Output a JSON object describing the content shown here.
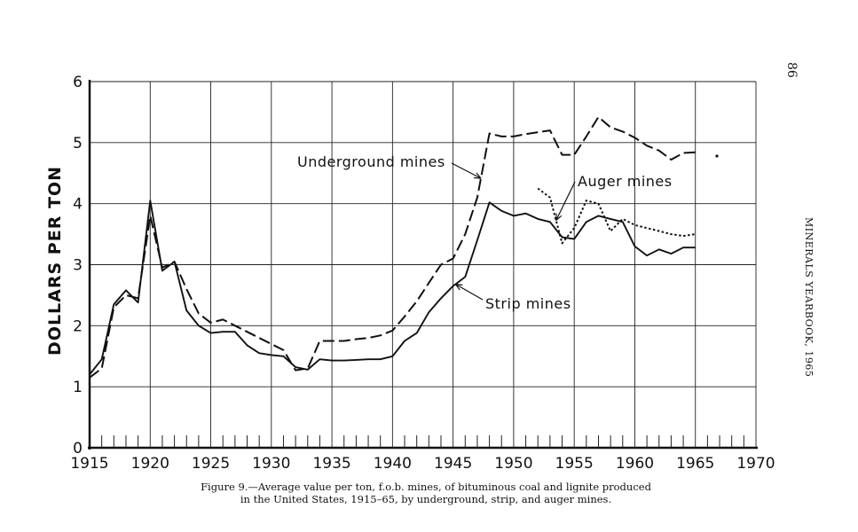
{
  "page": {
    "page_number": "86",
    "running_head": "MINERALS YEARBOOK, 1965",
    "caption_line1": "Figure 9.—Average value per ton, f.o.b. mines, of bituminous coal and lignite produced",
    "caption_line2": "in the United States, 1915–65, by underground, strip, and auger mines."
  },
  "chart_data": {
    "type": "line",
    "title": "",
    "xlabel": "",
    "ylabel": "DOLLARS PER TON",
    "xlim": [
      1915,
      1970
    ],
    "ylim": [
      0,
      6
    ],
    "grid": true,
    "legend": "none (series labeled directly on chart)",
    "x_ticks": [
      1915,
      1920,
      1925,
      1930,
      1935,
      1940,
      1945,
      1950,
      1955,
      1960,
      1965,
      1970
    ],
    "x_tick_labels": [
      "1915",
      "1920",
      "1925",
      "1930",
      "1935",
      "1940",
      "1945",
      "1950",
      "1955",
      "1960",
      "1965",
      "1970"
    ],
    "y_ticks": [
      0,
      1,
      2,
      3,
      4,
      5,
      6
    ],
    "y_tick_labels": [
      "0",
      "1",
      "2",
      "3",
      "4",
      "5",
      "6"
    ],
    "series": [
      {
        "name": "Underground mines",
        "style": "long-dash",
        "x": [
          1915,
          1916,
          1917,
          1918,
          1919,
          1920,
          1921,
          1922,
          1923,
          1924,
          1925,
          1926,
          1927,
          1928,
          1929,
          1930,
          1931,
          1932,
          1933,
          1934,
          1935,
          1936,
          1937,
          1938,
          1939,
          1940,
          1941,
          1942,
          1943,
          1944,
          1945,
          1946,
          1947,
          1948,
          1949,
          1950,
          1951,
          1952,
          1953,
          1954,
          1955,
          1956,
          1957,
          1958,
          1959,
          1960,
          1961,
          1962,
          1963,
          1964,
          1965
        ],
        "values": [
          1.15,
          1.3,
          2.3,
          2.5,
          2.45,
          3.8,
          2.95,
          3.05,
          2.6,
          2.2,
          2.05,
          2.1,
          2.0,
          1.9,
          1.8,
          1.7,
          1.6,
          1.27,
          1.3,
          1.75,
          1.75,
          1.75,
          1.78,
          1.8,
          1.84,
          1.92,
          2.15,
          2.4,
          2.7,
          3.0,
          3.1,
          3.5,
          4.1,
          5.15,
          5.1,
          5.1,
          5.14,
          5.17,
          5.2,
          4.8,
          4.8,
          5.1,
          5.42,
          5.25,
          5.18,
          5.08,
          4.95,
          4.87,
          4.72,
          4.83,
          4.84
        ]
      },
      {
        "name": "Strip mines",
        "style": "solid",
        "x": [
          1915,
          1916,
          1917,
          1918,
          1919,
          1920,
          1921,
          1922,
          1923,
          1924,
          1925,
          1926,
          1927,
          1928,
          1929,
          1930,
          1931,
          1932,
          1933,
          1934,
          1935,
          1936,
          1937,
          1938,
          1939,
          1940,
          1941,
          1942,
          1943,
          1944,
          1945,
          1946,
          1947,
          1948,
          1949,
          1950,
          1951,
          1952,
          1953,
          1954,
          1955,
          1956,
          1957,
          1958,
          1959,
          1960,
          1961,
          1962,
          1963,
          1964,
          1965
        ],
        "values": [
          1.2,
          1.45,
          2.35,
          2.58,
          2.38,
          4.05,
          2.9,
          3.05,
          2.25,
          2.0,
          1.88,
          1.9,
          1.9,
          1.68,
          1.55,
          1.52,
          1.5,
          1.32,
          1.28,
          1.45,
          1.43,
          1.43,
          1.44,
          1.45,
          1.45,
          1.5,
          1.75,
          1.88,
          2.22,
          2.45,
          2.65,
          2.8,
          3.4,
          4.02,
          3.88,
          3.8,
          3.84,
          3.75,
          3.7,
          3.45,
          3.42,
          3.7,
          3.8,
          3.75,
          3.7,
          3.3,
          3.15,
          3.25,
          3.18,
          3.28,
          3.28
        ]
      },
      {
        "name": "Auger mines",
        "style": "dotted",
        "x": [
          1952,
          1953,
          1954,
          1955,
          1956,
          1957,
          1958,
          1959,
          1960,
          1961,
          1962,
          1963,
          1964,
          1965
        ],
        "values": [
          4.25,
          4.1,
          3.35,
          3.6,
          4.05,
          4.0,
          3.55,
          3.75,
          3.65,
          3.6,
          3.55,
          3.5,
          3.47,
          3.5
        ]
      }
    ],
    "annotations": [
      {
        "text": "Underground mines",
        "target_series": "Underground mines"
      },
      {
        "text": "Auger mines",
        "target_series": "Auger mines"
      },
      {
        "text": "Strip mines",
        "target_series": "Strip mines"
      }
    ]
  }
}
